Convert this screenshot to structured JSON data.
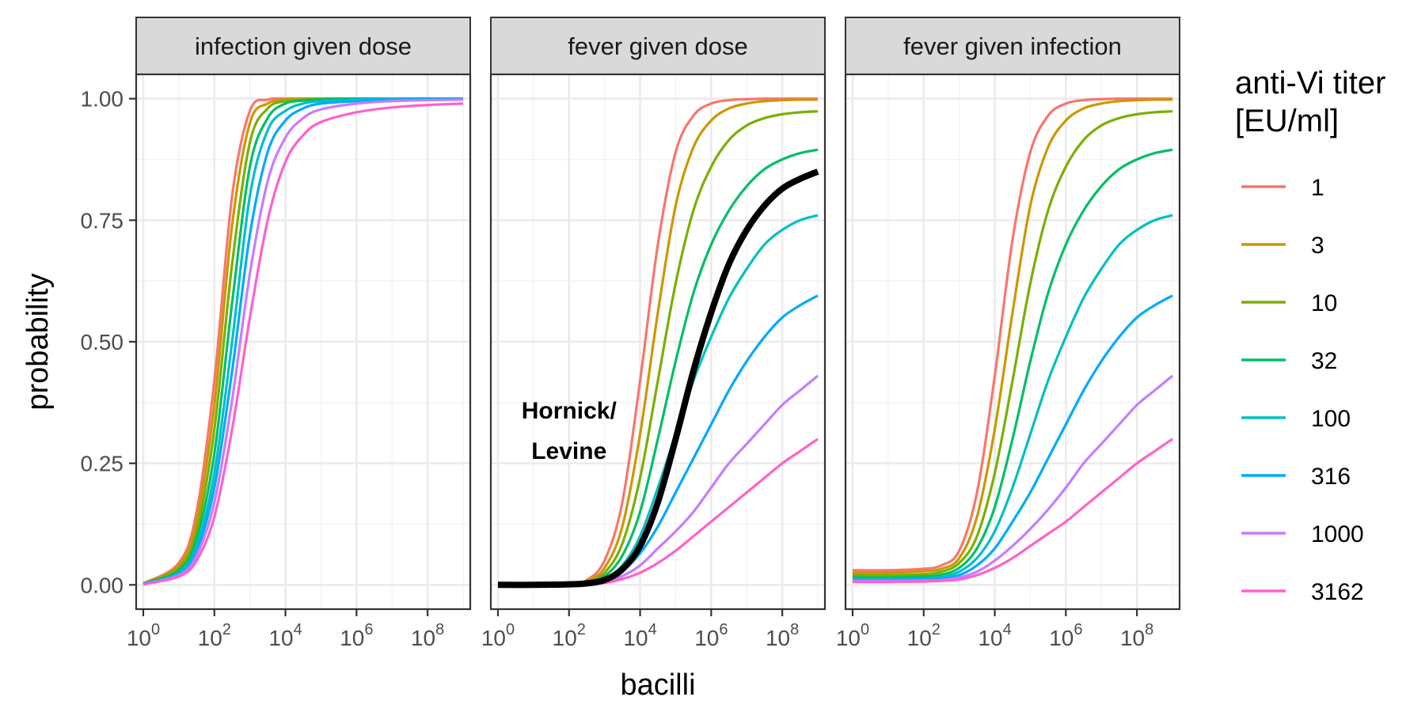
{
  "chart_data": {
    "type": "line",
    "x_axis": {
      "title": "bacilli",
      "scale": "log10",
      "range": [
        1,
        1000000000
      ],
      "ticks": [
        {
          "value": 1,
          "base": "10",
          "exp": "0"
        },
        {
          "value": 100,
          "base": "10",
          "exp": "2"
        },
        {
          "value": 10000,
          "base": "10",
          "exp": "4"
        },
        {
          "value": 1000000,
          "base": "10",
          "exp": "6"
        },
        {
          "value": 100000000,
          "base": "10",
          "exp": "8"
        }
      ]
    },
    "y_axis": {
      "title": "probability",
      "range": [
        0,
        1
      ],
      "ticks": [
        {
          "value": 0,
          "label": "0.00"
        },
        {
          "value": 0.25,
          "label": "0.25"
        },
        {
          "value": 0.5,
          "label": "0.50"
        },
        {
          "value": 0.75,
          "label": "0.75"
        },
        {
          "value": 1,
          "label": "1.00"
        }
      ]
    },
    "grid": true,
    "legend": {
      "title_lines": [
        "anti-Vi titer",
        "[EU/ml]"
      ],
      "placement": "right",
      "entries": [
        {
          "label": "1",
          "color": "#F8766D"
        },
        {
          "label": "3",
          "color": "#CD9600"
        },
        {
          "label": "10",
          "color": "#7CAE00"
        },
        {
          "label": "32",
          "color": "#00BE67"
        },
        {
          "label": "100",
          "color": "#00BFC4"
        },
        {
          "label": "316",
          "color": "#00A9FF"
        },
        {
          "label": "1000",
          "color": "#C77CFF"
        },
        {
          "label": "3162",
          "color": "#FF61CC"
        }
      ]
    },
    "panels": [
      {
        "title": "infection given dose",
        "x_log10": [
          0,
          1,
          1.5,
          2,
          2.5,
          3,
          3.5,
          4,
          4.5,
          5,
          6,
          7,
          8,
          9
        ],
        "series": [
          {
            "name": "1",
            "y": [
              0.003,
              0.045,
              0.15,
              0.42,
              0.8,
              0.975,
              0.998,
              1.0,
              1.0,
              1.0,
              1.0,
              1.0,
              1.0,
              1.0
            ]
          },
          {
            "name": "3",
            "y": [
              0.003,
              0.04,
              0.13,
              0.37,
              0.74,
              0.95,
              0.99,
              0.998,
              1.0,
              1.0,
              1.0,
              1.0,
              1.0,
              1.0
            ]
          },
          {
            "name": "10",
            "y": [
              0.002,
              0.035,
              0.11,
              0.32,
              0.66,
              0.91,
              0.98,
              0.995,
              0.998,
              1.0,
              1.0,
              1.0,
              1.0,
              1.0
            ]
          },
          {
            "name": "32",
            "y": [
              0.002,
              0.03,
              0.095,
              0.27,
              0.58,
              0.86,
              0.96,
              0.99,
              0.996,
              0.998,
              1.0,
              1.0,
              1.0,
              1.0
            ]
          },
          {
            "name": "100",
            "y": [
              0.002,
              0.025,
              0.08,
              0.23,
              0.5,
              0.8,
              0.935,
              0.975,
              0.99,
              0.995,
              0.998,
              1.0,
              1.0,
              1.0
            ]
          },
          {
            "name": "316",
            "y": [
              0.002,
              0.022,
              0.07,
              0.2,
              0.44,
              0.72,
              0.89,
              0.955,
              0.98,
              0.99,
              0.995,
              0.998,
              0.999,
              1.0
            ]
          },
          {
            "name": "1000",
            "y": [
              0.001,
              0.02,
              0.06,
              0.17,
              0.38,
              0.64,
              0.83,
              0.92,
              0.96,
              0.978,
              0.99,
              0.995,
              0.997,
              0.998
            ]
          },
          {
            "name": "3162",
            "y": [
              0.001,
              0.017,
              0.05,
              0.14,
              0.32,
              0.55,
              0.75,
              0.87,
              0.925,
              0.952,
              0.972,
              0.982,
              0.987,
              0.99
            ]
          }
        ]
      },
      {
        "title": "fever given dose",
        "x_log10": [
          0,
          1,
          2,
          2.5,
          3,
          3.5,
          4,
          4.5,
          5,
          5.5,
          6,
          6.5,
          7,
          7.5,
          8,
          8.5,
          9
        ],
        "series": [
          {
            "name": "1",
            "y": [
              0.0,
              0.0,
              0.003,
              0.01,
              0.05,
              0.17,
              0.42,
              0.7,
              0.89,
              0.965,
              0.99,
              0.997,
              0.999,
              1.0,
              1.0,
              1.0,
              1.0
            ]
          },
          {
            "name": "3",
            "y": [
              0.0,
              0.0,
              0.002,
              0.008,
              0.035,
              0.12,
              0.31,
              0.56,
              0.78,
              0.9,
              0.955,
              0.98,
              0.99,
              0.995,
              0.997,
              0.998,
              0.998
            ]
          },
          {
            "name": "10",
            "y": [
              0.0,
              0.0,
              0.002,
              0.006,
              0.025,
              0.085,
              0.22,
              0.42,
              0.62,
              0.77,
              0.86,
              0.915,
              0.945,
              0.96,
              0.968,
              0.972,
              0.974
            ]
          },
          {
            "name": "32",
            "y": [
              0.0,
              0.0,
              0.001,
              0.004,
              0.018,
              0.06,
              0.15,
              0.3,
              0.46,
              0.6,
              0.7,
              0.77,
              0.82,
              0.855,
              0.875,
              0.888,
              0.895
            ]
          },
          {
            "name": "100",
            "y": [
              0.0,
              0.0,
              0.001,
              0.003,
              0.013,
              0.04,
              0.1,
              0.2,
              0.31,
              0.42,
              0.51,
              0.59,
              0.65,
              0.7,
              0.73,
              0.75,
              0.76
            ]
          },
          {
            "name": "316",
            "y": [
              0.0,
              0.0,
              0.001,
              0.002,
              0.009,
              0.028,
              0.065,
              0.12,
              0.19,
              0.26,
              0.33,
              0.4,
              0.46,
              0.51,
              0.55,
              0.575,
              0.595
            ]
          },
          {
            "name": "1000",
            "y": [
              0.0,
              0.0,
              0.0,
              0.002,
              0.006,
              0.018,
              0.04,
              0.075,
              0.11,
              0.15,
              0.2,
              0.25,
              0.29,
              0.33,
              0.37,
              0.4,
              0.43
            ]
          },
          {
            "name": "3162",
            "y": [
              0.0,
              0.0,
              0.0,
              0.001,
              0.004,
              0.012,
              0.025,
              0.045,
              0.07,
              0.1,
              0.13,
              0.16,
              0.19,
              0.22,
              0.25,
              0.275,
              0.3
            ]
          },
          {
            "name": "Hornick/ Levine",
            "y": [
              0.0,
              0.0,
              0.001,
              0.003,
              0.01,
              0.032,
              0.08,
              0.17,
              0.3,
              0.44,
              0.56,
              0.66,
              0.73,
              0.78,
              0.815,
              0.835,
              0.85
            ]
          }
        ]
      },
      {
        "title": "fever given infection",
        "x_log10": [
          0,
          1,
          2,
          2.5,
          3,
          3.5,
          4,
          4.5,
          5,
          5.5,
          6,
          6.5,
          7,
          7.5,
          8,
          8.5,
          9
        ],
        "series": [
          {
            "name": "1",
            "y": [
              0.03,
              0.03,
              0.033,
              0.04,
              0.07,
              0.19,
              0.43,
              0.71,
              0.89,
              0.965,
              0.99,
              0.997,
              0.999,
              1.0,
              1.0,
              1.0,
              1.0
            ]
          },
          {
            "name": "3",
            "y": [
              0.025,
              0.025,
              0.028,
              0.033,
              0.055,
              0.14,
              0.32,
              0.56,
              0.78,
              0.9,
              0.955,
              0.98,
              0.99,
              0.995,
              0.997,
              0.998,
              0.998
            ]
          },
          {
            "name": "10",
            "y": [
              0.02,
              0.02,
              0.022,
              0.027,
              0.045,
              0.1,
              0.23,
              0.42,
              0.62,
              0.77,
              0.86,
              0.915,
              0.945,
              0.96,
              0.968,
              0.972,
              0.974
            ]
          },
          {
            "name": "32",
            "y": [
              0.015,
              0.015,
              0.017,
              0.021,
              0.035,
              0.075,
              0.16,
              0.3,
              0.46,
              0.6,
              0.7,
              0.77,
              0.82,
              0.855,
              0.875,
              0.888,
              0.895
            ]
          },
          {
            "name": "100",
            "y": [
              0.012,
              0.012,
              0.013,
              0.016,
              0.027,
              0.055,
              0.11,
              0.2,
              0.31,
              0.42,
              0.51,
              0.59,
              0.65,
              0.7,
              0.73,
              0.75,
              0.76
            ]
          },
          {
            "name": "316",
            "y": [
              0.01,
              0.01,
              0.011,
              0.013,
              0.02,
              0.04,
              0.075,
              0.13,
              0.19,
              0.26,
              0.33,
              0.4,
              0.46,
              0.51,
              0.55,
              0.575,
              0.595
            ]
          },
          {
            "name": "1000",
            "y": [
              0.008,
              0.008,
              0.009,
              0.01,
              0.015,
              0.027,
              0.05,
              0.08,
              0.115,
              0.155,
              0.2,
              0.25,
              0.29,
              0.33,
              0.37,
              0.4,
              0.43
            ]
          },
          {
            "name": "3162",
            "y": [
              0.006,
              0.006,
              0.007,
              0.008,
              0.011,
              0.02,
              0.035,
              0.055,
              0.08,
              0.105,
              0.13,
              0.16,
              0.19,
              0.22,
              0.25,
              0.275,
              0.3
            ]
          }
        ]
      }
    ],
    "annotation": {
      "panel": 1,
      "lines": [
        "Hornick/",
        "Levine"
      ],
      "x_log10": 2.0,
      "y": 0.3,
      "series_color": "#000000"
    }
  }
}
